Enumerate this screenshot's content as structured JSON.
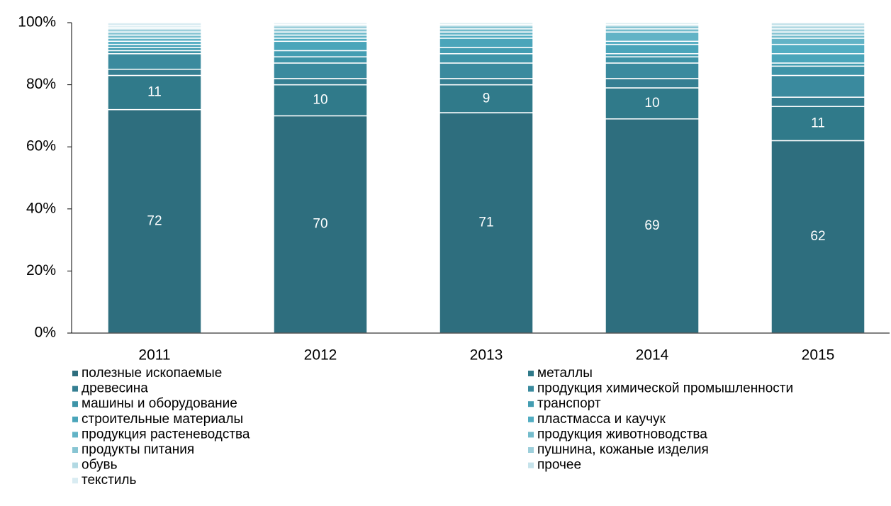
{
  "chart_data": {
    "type": "stacked_bar",
    "categories": [
      "2011",
      "2012",
      "2013",
      "2014",
      "2015"
    ],
    "ylim": [
      0,
      100
    ],
    "yticks": [
      {
        "value": 0,
        "label": "0%"
      },
      {
        "value": 20,
        "label": "20%"
      },
      {
        "value": 40,
        "label": "40%"
      },
      {
        "value": 60,
        "label": "60%"
      },
      {
        "value": 80,
        "label": "80%"
      },
      {
        "value": 100,
        "label": "100%"
      }
    ],
    "legend": "bottom",
    "series": [
      {
        "name": "полезные ископаемые",
        "color": "#2e6e7e",
        "values": [
          72,
          70,
          71,
          69,
          62
        ],
        "data_labels": true
      },
      {
        "name": "металлы",
        "color": "#307a8a",
        "values": [
          11,
          10,
          9,
          10,
          11
        ],
        "data_labels": true
      },
      {
        "name": "древесина",
        "color": "#357f92",
        "values": [
          2,
          2,
          2,
          3,
          3
        ]
      },
      {
        "name": "продукция химической промышленности",
        "color": "#3a8a9e",
        "values": [
          5,
          5,
          5,
          5,
          7
        ]
      },
      {
        "name": "машины и оборудование",
        "color": "#3e94a8",
        "values": [
          1,
          2,
          3,
          2,
          3
        ]
      },
      {
        "name": "транспорт",
        "color": "#439db2",
        "values": [
          1,
          2,
          2,
          1,
          1
        ]
      },
      {
        "name": "строительные материалы",
        "color": "#4aa5ba",
        "values": [
          1,
          3,
          3,
          3,
          3
        ]
      },
      {
        "name": "пластмасса и каучук",
        "color": "#52adc2",
        "values": [
          1,
          1,
          1,
          1,
          3
        ]
      },
      {
        "name": "продукция растеневодства",
        "color": "#62b3c6",
        "values": [
          1,
          1,
          1,
          3,
          2
        ]
      },
      {
        "name": "продукция животноводства",
        "color": "#74bccc",
        "values": [
          1,
          1,
          1,
          1,
          1
        ]
      },
      {
        "name": "продукты питания",
        "color": "#88c5d3",
        "values": [
          1,
          1,
          1,
          1,
          1
        ]
      },
      {
        "name": "пушнина, кожаные изделия",
        "color": "#9dcfdb",
        "values": [
          1,
          1,
          0.5,
          0.5,
          1
        ]
      },
      {
        "name": "обувь",
        "color": "#b2d9e3",
        "values": [
          0.5,
          0.5,
          0.5,
          0.5,
          1
        ]
      },
      {
        "name": "прочее",
        "color": "#c6e3eb",
        "values": [
          0.5,
          0.5,
          0,
          0,
          1
        ]
      },
      {
        "name": "текстиль",
        "color": "#d9ecf2",
        "values": [
          1,
          0,
          0,
          0,
          0
        ]
      }
    ]
  }
}
